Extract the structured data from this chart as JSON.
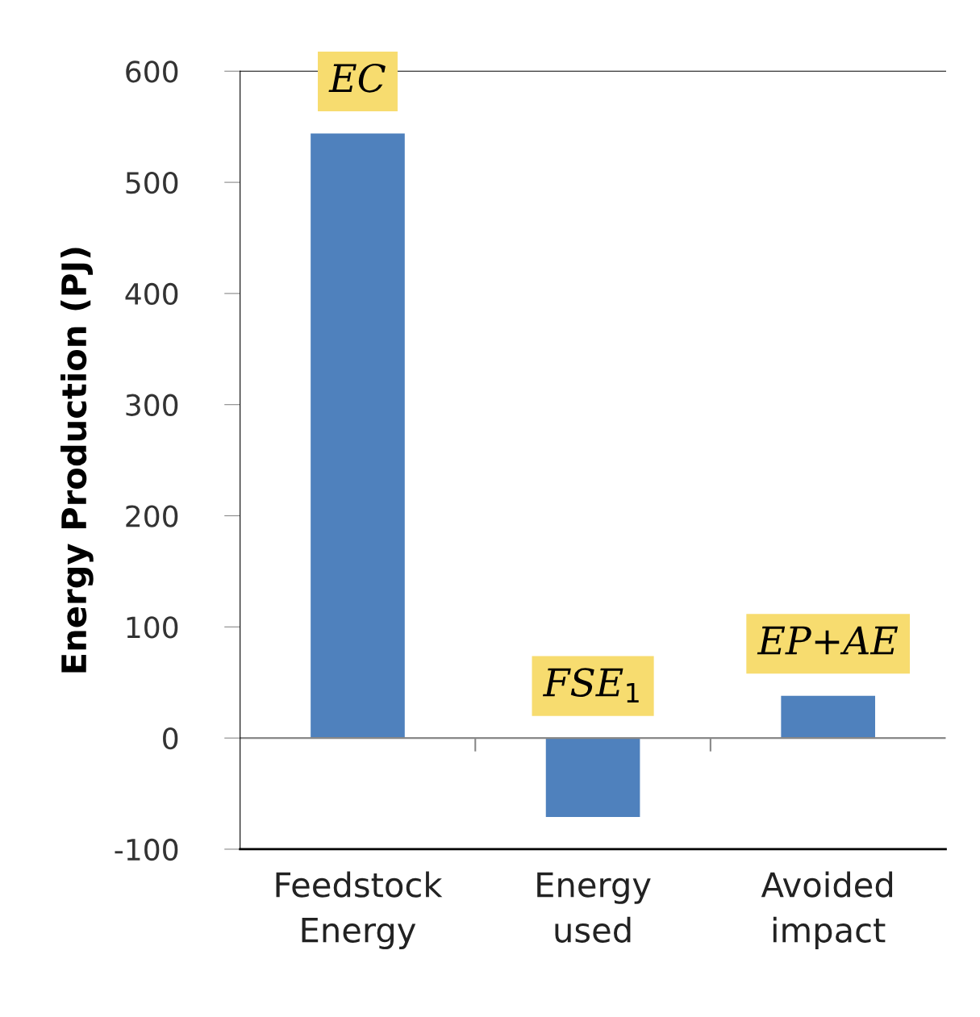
{
  "chart_data": {
    "type": "bar",
    "ylabel": "Energy Production (PJ)",
    "categories": [
      "Feedstock Energy",
      "Energy used",
      "Avoided impact"
    ],
    "values": [
      544,
      -71,
      38
    ],
    "color": "#4f81bd",
    "ylim": [
      -100,
      600
    ],
    "ref_lines": [
      {
        "axis": "y",
        "value": 0,
        "color": "#888888"
      }
    ],
    "yticks": [
      -100,
      0,
      100,
      200,
      300,
      400,
      500,
      600
    ],
    "grid": false,
    "annotations": [
      {
        "text": "EC",
        "x": "Feedstock Energy",
        "y": 544
      },
      {
        "text": "FSE$_{1}$",
        "x": "Energy used",
        "y": 0
      },
      {
        "text": "EP+AE",
        "x": "Avoided impact",
        "y": 38
      }
    ]
  }
}
